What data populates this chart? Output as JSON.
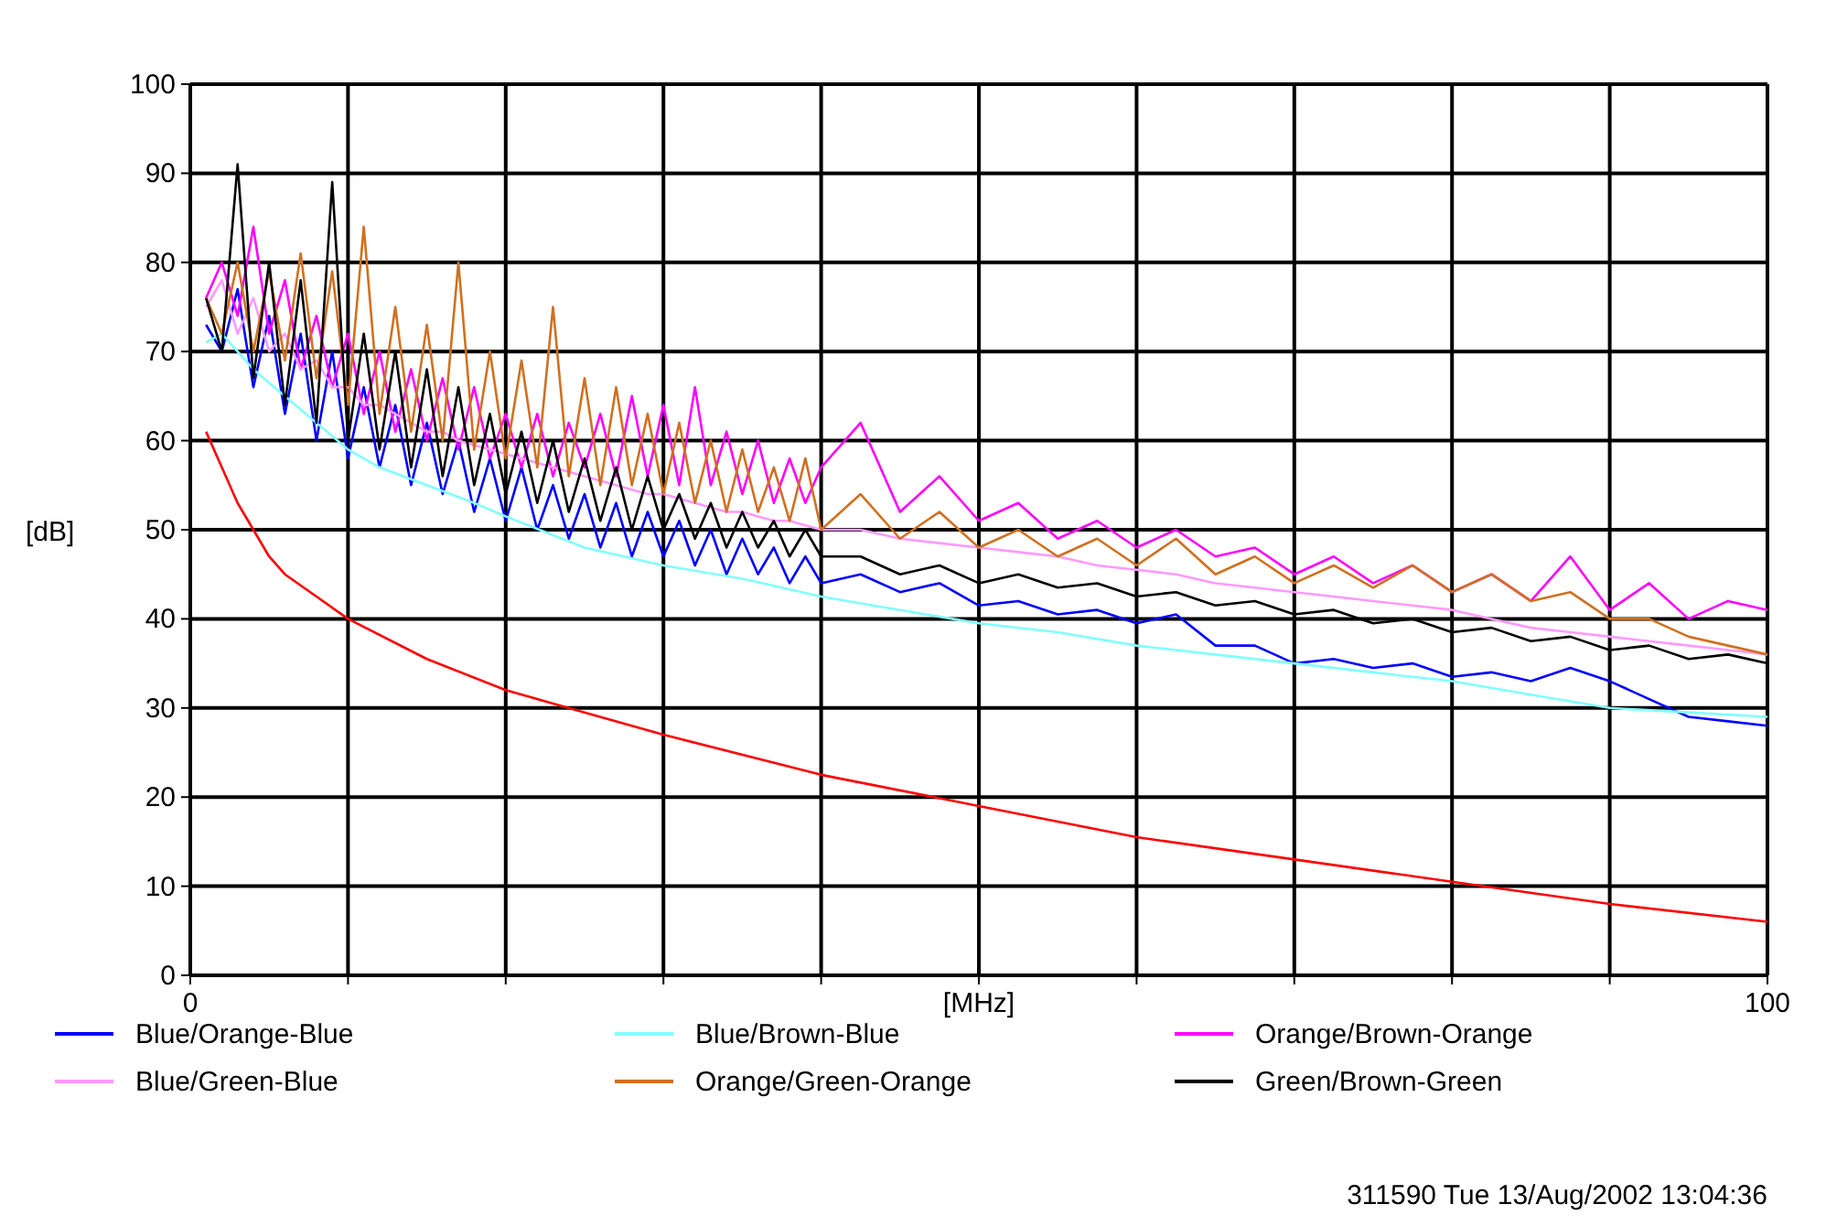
{
  "chart_data": {
    "type": "line",
    "xlabel": "[MHz]",
    "ylabel": "[dB]",
    "annotations": [
      "311590 Tue 13/Aug/2002 13:04:36"
    ],
    "xlim": [
      0,
      100
    ],
    "ylim": [
      0,
      100
    ],
    "xticks": [
      0,
      {
        "value": 10,
        "label": null
      },
      {
        "value": 20,
        "label": null
      },
      {
        "value": 30,
        "label": null
      },
      {
        "value": 40,
        "label": null
      },
      {
        "value": 50,
        "label": null
      },
      {
        "value": 60,
        "label": null
      },
      {
        "value": 70,
        "label": null
      },
      {
        "value": 80,
        "label": null
      },
      {
        "value": 90,
        "label": null
      },
      100
    ],
    "yticks": [
      0,
      10,
      20,
      30,
      40,
      50,
      60,
      70,
      80,
      90,
      100
    ],
    "grid": true,
    "legend": "bottom",
    "marker": "none",
    "line_style": "solid",
    "x": [
      1,
      2,
      3,
      4,
      5,
      6,
      7,
      8,
      9,
      10,
      11,
      12,
      13,
      14,
      15,
      16,
      17,
      18,
      19,
      20,
      21,
      22,
      23,
      24,
      25,
      26,
      27,
      28,
      29,
      30,
      31,
      32,
      33,
      34,
      35,
      36,
      37,
      38,
      39,
      40,
      42.5,
      45,
      47.5,
      50,
      52.5,
      55,
      57.5,
      60,
      62.5,
      65,
      67.5,
      70,
      72.5,
      75,
      77.5,
      80,
      82.5,
      85,
      87.5,
      90,
      92.5,
      95,
      97.5,
      100
    ],
    "series": [
      {
        "name": "Blue/Orange-Blue",
        "color": "#0000ff",
        "values": [
          73,
          70,
          77,
          66,
          74,
          63,
          72,
          60,
          70,
          58,
          66,
          57,
          64,
          55,
          62,
          54,
          60,
          52,
          58,
          51,
          57,
          50,
          55,
          49,
          54,
          48,
          53,
          47,
          52,
          47,
          51,
          46,
          50,
          45,
          49,
          45,
          48,
          44,
          47,
          44,
          45,
          43,
          44,
          41.5,
          42,
          40.5,
          41,
          39.5,
          40.5,
          37,
          37,
          35,
          35.5,
          34.5,
          35,
          33.5,
          34,
          33,
          34.5,
          33,
          31,
          29,
          28.5,
          28
        ]
      },
      {
        "name": "Blue/Brown-Blue",
        "color": "#80ffff",
        "x": [
          1,
          2,
          4,
          6,
          8,
          10,
          12,
          15,
          18,
          20,
          25,
          30,
          35,
          40,
          45,
          50,
          55,
          60,
          65,
          70,
          75,
          80,
          85,
          90,
          95,
          100
        ],
        "values": [
          71,
          72,
          68,
          65,
          62,
          59,
          57,
          55,
          53,
          51.5,
          48,
          46,
          44.5,
          42.5,
          41,
          39.5,
          38.5,
          37,
          36,
          35,
          34,
          33,
          31.5,
          30,
          29.5,
          29
        ]
      },
      {
        "name": "Orange/Brown-Orange",
        "color": "#ff00ff",
        "values": [
          76,
          80,
          74,
          84,
          72,
          78,
          68,
          74,
          66,
          72,
          63,
          70,
          61,
          68,
          60,
          67,
          59,
          66,
          58,
          63,
          57,
          63,
          56,
          62,
          57,
          63,
          56,
          65,
          56,
          64,
          55,
          66,
          55,
          61,
          54,
          60,
          53,
          58,
          53,
          57,
          62,
          52,
          56,
          51,
          53,
          49,
          51,
          48,
          50,
          47,
          48,
          45,
          47,
          44,
          46,
          43,
          45,
          42,
          47,
          41,
          44,
          40,
          42,
          41
        ]
      },
      {
        "name": "Blue/Green-Blue",
        "color": "#ff99ff",
        "values": [
          75,
          78,
          72,
          76,
          70,
          72,
          68,
          69,
          66,
          66,
          64,
          64,
          63,
          62,
          61,
          61,
          60,
          59.5,
          59,
          58.5,
          58,
          57.5,
          57,
          56.5,
          56,
          55.5,
          55,
          54.5,
          54,
          54,
          53.5,
          53,
          52.5,
          52,
          52,
          51.5,
          51,
          51,
          50.5,
          50,
          50,
          49,
          48.5,
          48,
          47.5,
          47,
          46,
          45.5,
          45,
          44,
          43.5,
          43,
          42.5,
          42,
          41.5,
          41,
          40,
          39,
          38.5,
          38,
          37.5,
          37,
          36.5,
          36
        ]
      },
      {
        "name": "Orange/Green-Orange",
        "color": "#d07020",
        "values": [
          76,
          72,
          80,
          70,
          79,
          69,
          81,
          67,
          79,
          64,
          84,
          63,
          75,
          61,
          73,
          60,
          80,
          59,
          70,
          58,
          69,
          57,
          75,
          56,
          67,
          55,
          66,
          55,
          63,
          54,
          62,
          53,
          60,
          52,
          59,
          52,
          57,
          51,
          58,
          50,
          54,
          49,
          52,
          48,
          50,
          47,
          49,
          46,
          49,
          45,
          47,
          44,
          46,
          43.5,
          46,
          43,
          45,
          42,
          43,
          40,
          40,
          38,
          37,
          36
        ]
      },
      {
        "name": "Green/Brown-Green",
        "color": "#000000",
        "values": [
          76,
          70,
          91,
          67,
          80,
          64,
          78,
          62,
          89,
          60,
          72,
          59,
          70,
          57,
          68,
          56,
          66,
          55,
          63,
          54,
          61,
          53,
          60,
          52,
          58,
          51,
          57,
          50,
          56,
          50,
          54,
          49,
          53,
          48,
          52,
          48,
          51,
          47,
          50,
          47,
          47,
          45,
          46,
          44,
          45,
          43.5,
          44,
          42.5,
          43,
          41.5,
          42,
          40.5,
          41,
          39.5,
          40,
          38.5,
          39,
          37.5,
          38,
          36.5,
          37,
          35.5,
          36,
          35
        ]
      },
      {
        "color": "#ff0000",
        "x": [
          1,
          2,
          3,
          4,
          5,
          6,
          8,
          10,
          15,
          20,
          25,
          30,
          40,
          50,
          60,
          70,
          80,
          90,
          100
        ],
        "values": [
          61,
          57,
          53,
          50,
          47,
          45,
          42.5,
          40,
          35.5,
          32,
          29.5,
          27,
          22.5,
          19,
          15.5,
          13,
          10.5,
          8,
          6
        ]
      }
    ]
  }
}
